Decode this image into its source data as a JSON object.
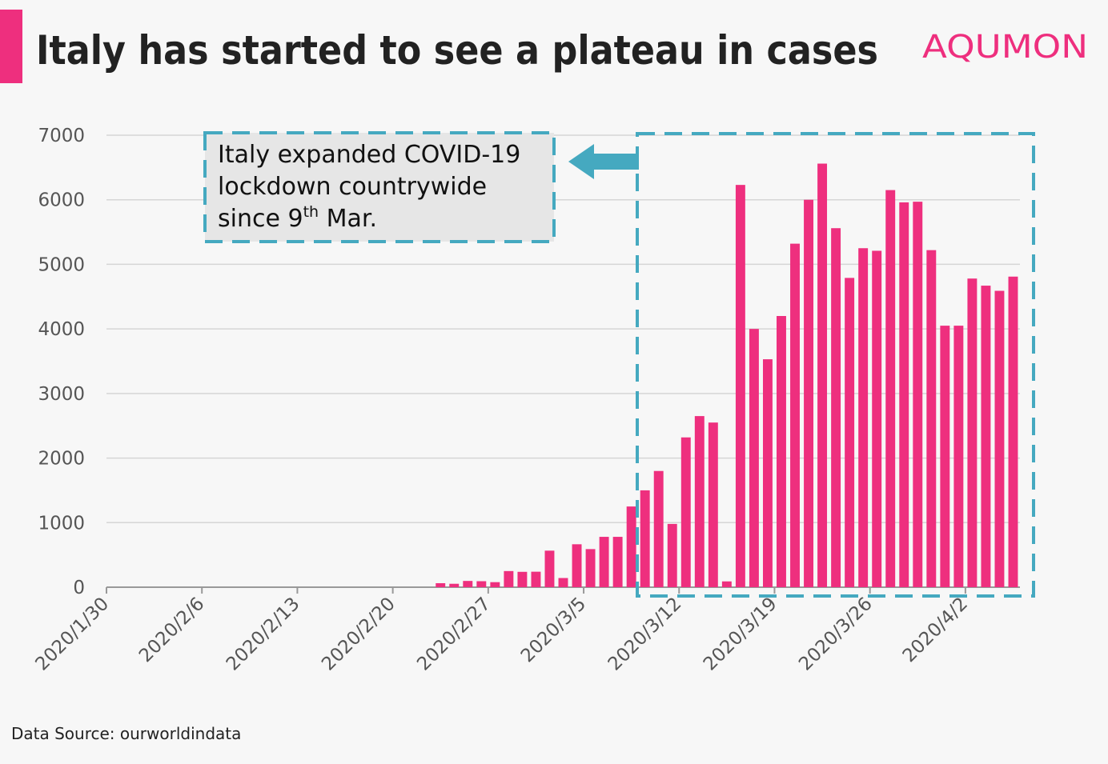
{
  "chart_data": {
    "type": "bar",
    "title": "Italy has started to see a plateau in cases",
    "logo": "AQUMON",
    "source": "Data Source: ourworldindata",
    "annotation": {
      "lines": [
        "Italy expanded COVID-19",
        "lockdown countrywide",
        "since 9"
      ],
      "superscript": "th",
      "after": " Mar."
    },
    "categories": [
      "2020/1/30",
      null,
      null,
      null,
      null,
      null,
      null,
      "2020/2/6",
      null,
      null,
      null,
      null,
      null,
      null,
      "2020/2/13",
      null,
      null,
      null,
      null,
      null,
      null,
      "2020/2/20",
      null,
      null,
      null,
      null,
      null,
      null,
      "2020/2/27",
      null,
      null,
      null,
      null,
      null,
      null,
      "2020/3/5",
      null,
      null,
      null,
      null,
      null,
      null,
      "2020/3/12",
      null,
      null,
      null,
      null,
      null,
      null,
      "2020/3/19",
      null,
      null,
      null,
      null,
      null,
      null,
      "2020/3/26",
      null,
      null,
      null,
      null,
      null,
      null,
      "2020/4/2",
      null,
      null,
      null
    ],
    "values": [
      0,
      0,
      0,
      0,
      0,
      0,
      0,
      0,
      0,
      0,
      0,
      0,
      0,
      0,
      0,
      0,
      0,
      0,
      0,
      0,
      0,
      0,
      0,
      0,
      62,
      53,
      97,
      93,
      78,
      250,
      238,
      240,
      566,
      142,
      665,
      590,
      780,
      780,
      1250,
      1500,
      1800,
      980,
      2320,
      2650,
      2550,
      90,
      6230,
      4000,
      3530,
      4200,
      5320,
      6000,
      6560,
      5560,
      4790,
      5250,
      5210,
      6150,
      5960,
      5970,
      5220,
      4050,
      4050,
      4780,
      4670,
      4590,
      4810
    ],
    "color": "#ee2f7e",
    "ylim": [
      0,
      7000
    ],
    "yticks": [
      0,
      1000,
      2000,
      3000,
      4000,
      5000,
      6000,
      7000
    ],
    "grid": true
  }
}
